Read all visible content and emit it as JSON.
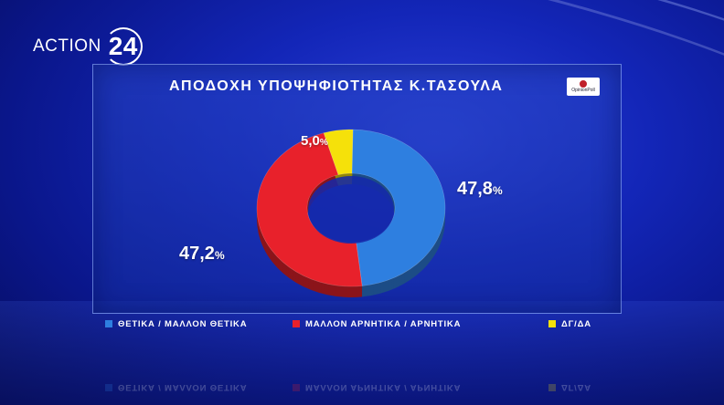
{
  "branding": {
    "logo_text": "ACTION",
    "logo_number": "24"
  },
  "poll_badge": "OpinionPoll",
  "chart_data": {
    "type": "pie",
    "title": "ΑΠΟΔΟΧΗ ΥΠΟΨΗΦΙΟΤΗΤΑΣ Κ.ΤΑΣΟΥΛΑ",
    "slices": [
      {
        "name": "ΘΕΤΙΚΑ / ΜΑΛΛΟΝ ΘΕΤΙΚΑ",
        "value": 47.8,
        "label": "47,8",
        "color": "#2e7fe0"
      },
      {
        "name": "ΜΑΛΛΟΝ ΑΡΝΗΤΙΚΑ / ΑΡΝΗΤΙΚΑ",
        "value": 47.2,
        "label": "47,2",
        "color": "#e8212b"
      },
      {
        "name": "ΔΓ/ΔΑ",
        "value": 5.0,
        "label": "5,0",
        "color": "#f5e10a"
      }
    ],
    "unit": "%",
    "legend_position": "bottom"
  }
}
